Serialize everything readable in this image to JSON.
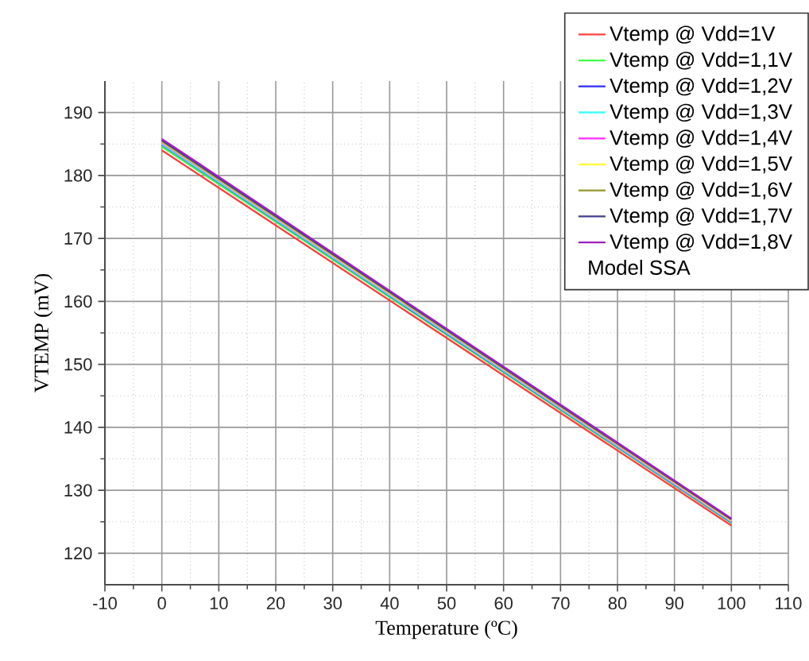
{
  "chart_data": {
    "type": "line",
    "xlabel": "Temperature (ºC)",
    "ylabel": "VTEMP (mV)",
    "legend_title": "Model SSA",
    "x": [
      0,
      100
    ],
    "series": [
      {
        "name": "Vtemp @ Vdd=1V",
        "color": "#ff4040",
        "values": [
          184.0,
          124.4
        ]
      },
      {
        "name": "Vtemp @ Vdd=1,1V",
        "color": "#40ff40",
        "values": [
          184.6,
          124.8
        ]
      },
      {
        "name": "Vtemp @ Vdd=1,2V",
        "color": "#4040ff",
        "values": [
          184.9,
          124.9
        ]
      },
      {
        "name": "Vtemp @ Vdd=1,3V",
        "color": "#40ffff",
        "values": [
          185.0,
          125.0
        ]
      },
      {
        "name": "Vtemp @ Vdd=1,4V",
        "color": "#ff40ff",
        "values": [
          185.2,
          125.1
        ]
      },
      {
        "name": "Vtemp @ Vdd=1,5V",
        "color": "#ffff40",
        "values": [
          185.3,
          125.2
        ]
      },
      {
        "name": "Vtemp @ Vdd=1,6V",
        "color": "#a0a040",
        "values": [
          185.4,
          125.3
        ]
      },
      {
        "name": "Vtemp @ Vdd=1,7V",
        "color": "#404090",
        "values": [
          185.6,
          125.4
        ]
      },
      {
        "name": "Vtemp @ Vdd=1,8V",
        "color": "#a020c0",
        "values": [
          185.8,
          125.5
        ]
      }
    ],
    "xlim": [
      -10,
      110
    ],
    "xticks": [
      -10,
      0,
      10,
      20,
      30,
      40,
      50,
      60,
      70,
      80,
      90,
      100,
      110
    ],
    "ylim": [
      115,
      195
    ],
    "yticks": [
      120,
      130,
      140,
      150,
      160,
      170,
      180,
      190
    ],
    "grid": true,
    "legend": "top right",
    "marker": "none",
    "line_style": "solid"
  }
}
